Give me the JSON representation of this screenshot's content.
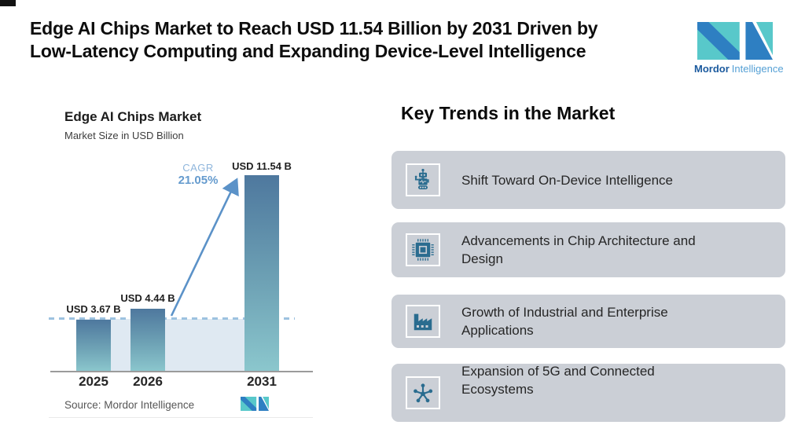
{
  "header": {
    "title": "Edge AI Chips Market to Reach USD 11.54 Billion by 2031 Driven by Low-Latency Computing and Expanding Device-Level Intelligence",
    "title_lines": [
      "Edge AI Chips Market to Reach USD 11.54 Billion by 2031 Driven by",
      "Low-Latency Computing and Expanding Device-Level Intelligence"
    ]
  },
  "logo": {
    "brand_bold": "Mordor",
    "brand_light": "Intelligence"
  },
  "chart": {
    "title": "Edge AI Chips Market",
    "subtitle": "Market Size in USD Billion",
    "cagr": {
      "label": "CAGR",
      "value": "21.05%"
    },
    "bars": [
      {
        "year": "2025",
        "value_label": "USD 3.67 B"
      },
      {
        "year": "2026",
        "value_label": "USD 4.44 B"
      },
      {
        "year": "2031",
        "value_label": "USD 11.54 B"
      }
    ],
    "source": "Source: Mordor Intelligence"
  },
  "chart_data": {
    "type": "bar",
    "title": "Edge AI Chips Market",
    "subtitle": "Market Size in USD Billion",
    "categories": [
      "2025",
      "2026",
      "2031"
    ],
    "values": [
      3.67,
      4.44,
      11.54
    ],
    "unit": "USD Billion",
    "bar_labels": [
      "USD 3.67 B",
      "USD 4.44 B",
      "USD 11.54 B"
    ],
    "annotations": {
      "cagr": "21.05%",
      "reference_dashed_line_at": 3.67
    },
    "xlabel": "",
    "ylabel": "Market Size in USD Billion",
    "grid": false,
    "legend": false,
    "source": "Source: Mordor Intelligence"
  },
  "trends": {
    "heading": "Key Trends in the Market",
    "items": [
      {
        "icon": "robot-icon",
        "label": "Shift Toward On-Device Intelligence",
        "lines": [
          "Shift Toward On-Device Intelligence"
        ]
      },
      {
        "icon": "chip-icon",
        "label": "Advancements in Chip Architecture and Design",
        "lines": [
          "Advancements in Chip Architecture and",
          "Design"
        ]
      },
      {
        "icon": "factory-icon",
        "label": "Growth of Industrial and Enterprise Applications",
        "lines": [
          "Growth of Industrial and Enterprise",
          "Applications"
        ]
      },
      {
        "icon": "network-icon",
        "label": "Expansion of 5G and Connected Ecosystems",
        "lines": [
          "Expansion of 5G and Connected",
          "Ecosystems"
        ]
      }
    ]
  },
  "colors": {
    "accent_arrow_blue": "#5b92c8",
    "cagr_label_blue": "#8fb6dc",
    "cagr_value_blue": "#659bce",
    "bar_gradient_top": "#4e789e",
    "bar_gradient_bottom": "#8bc7cd",
    "band_fill": "#dfe9f2",
    "dashed_line": "#9dc2e0",
    "card_background": "#cbcfd6",
    "trend_icon": "#2a6c8f",
    "logo_teal": "#58c8ca",
    "logo_blue": "#2e7fc2",
    "brand_dark_blue": "#1b5a9e",
    "brand_light_blue": "#55a0d5"
  }
}
